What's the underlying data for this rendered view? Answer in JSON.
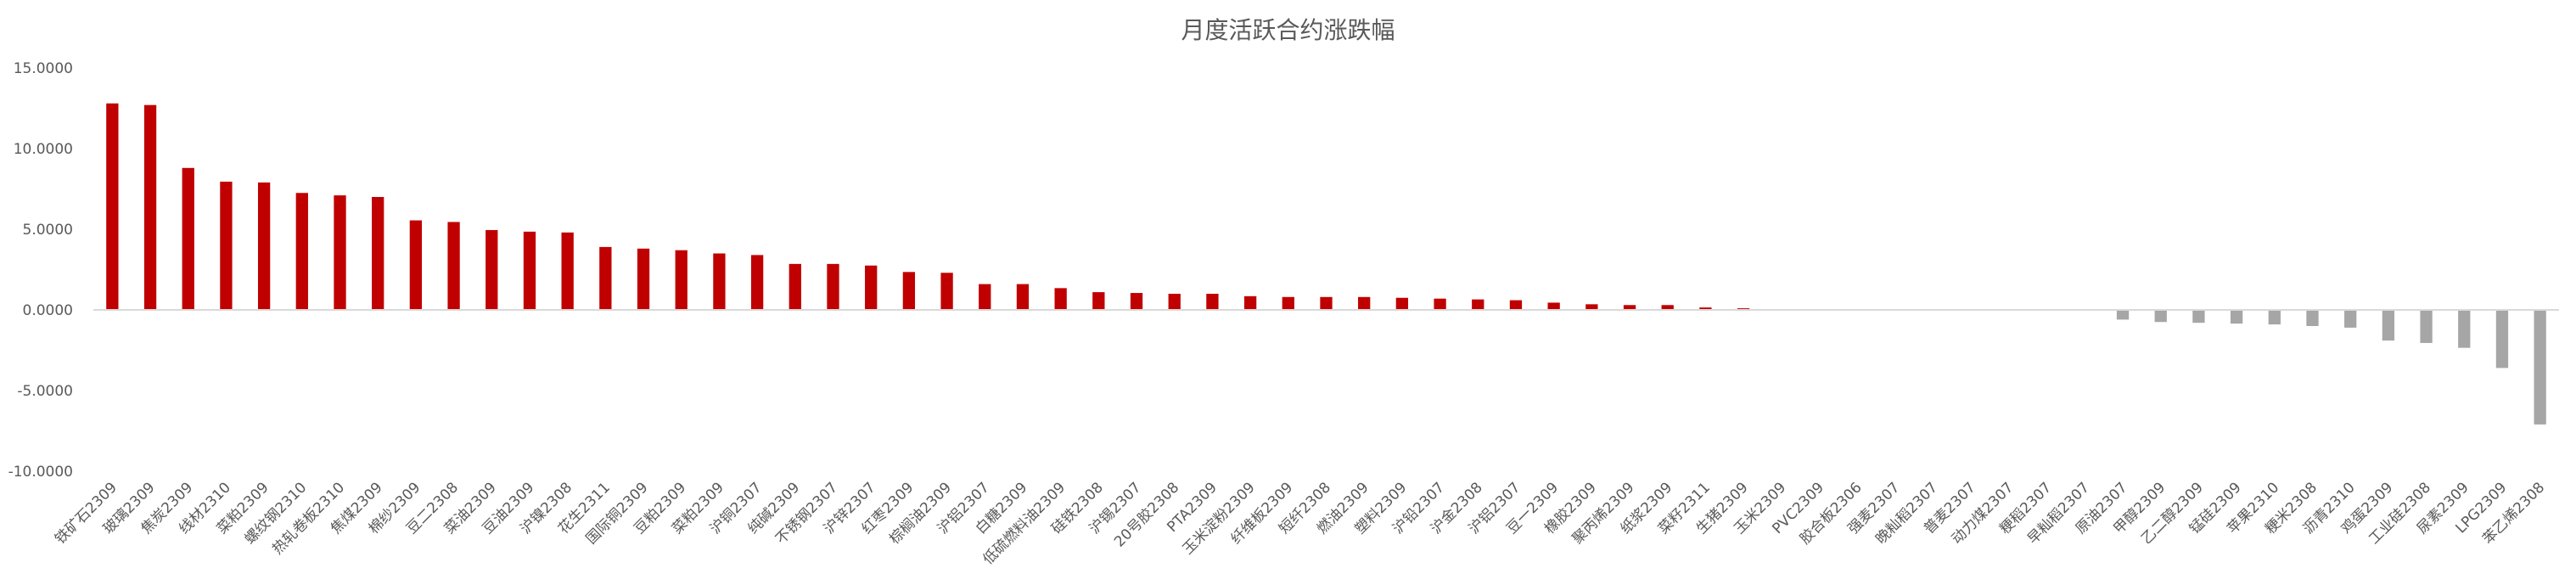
{
  "chart_data": {
    "type": "bar",
    "title": "月度活跃合约涨跌幅",
    "xlabel": "",
    "ylabel": "",
    "ylim": [
      -10,
      15
    ],
    "yticks": [
      "15.0000",
      "10.0000",
      "5.0000",
      "0.0000",
      "-5.0000",
      "-10.0000"
    ],
    "grid": false,
    "legend": "none",
    "colors": {
      "positive": "#c00000",
      "negative": "#a6a6a6",
      "axis": "#d9d9d9"
    },
    "categories": [
      "铁矿石2309",
      "玻璃2309",
      "焦炭2309",
      "线材2310",
      "菜粕2309",
      "螺纹钢2310",
      "热轧卷板2310",
      "焦煤2309",
      "棉纱2309",
      "豆二2308",
      "菜油2309",
      "豆油2309",
      "沪镍2308",
      "花生2311",
      "国际铜2309",
      "豆粕2309",
      "菜粕2309",
      "沪铜2307",
      "纯碱2309",
      "不锈钢2307",
      "沪锌2307",
      "红枣2309",
      "棕榈油2309",
      "沪铝2307",
      "白糖2309",
      "低硫燃料油2309",
      "硅铁2308",
      "沪锡2307",
      "20号胶2308",
      "PTA2309",
      "玉米淀粉2309",
      "纤维板2309",
      "短纤2308",
      "燃油2309",
      "塑料2309",
      "沪铅2307",
      "沪金2308",
      "沪铝2307",
      "豆一2309",
      "橡胶2309",
      "聚丙烯2309",
      "纸浆2309",
      "菜籽2311",
      "生猪2309",
      "玉米2309",
      "PVC2309",
      "胶合板2306",
      "强麦2307",
      "晚籼稻2307",
      "普麦2307",
      "动力煤2307",
      "粳稻2307",
      "早籼稻2307",
      "原油2307",
      "甲醇2309",
      "乙二醇2309",
      "锰硅2309",
      "苹果2310",
      "粳米2308",
      "沥青2310",
      "鸡蛋2309",
      "工业硅2308",
      "尿素2309",
      "LPG2309",
      "苯乙烯2308"
    ],
    "values": [
      12.8,
      12.7,
      8.8,
      7.95,
      7.9,
      7.25,
      7.1,
      7.0,
      5.55,
      5.45,
      4.95,
      4.85,
      4.8,
      3.9,
      3.8,
      3.7,
      3.5,
      3.4,
      2.85,
      2.85,
      2.75,
      2.35,
      2.3,
      1.6,
      1.6,
      1.35,
      1.1,
      1.05,
      1.0,
      1.0,
      0.85,
      0.8,
      0.8,
      0.8,
      0.75,
      0.7,
      0.65,
      0.6,
      0.45,
      0.35,
      0.3,
      0.3,
      0.15,
      0.1,
      0.05,
      0.0,
      0.0,
      0.0,
      0.0,
      0.0,
      0.0,
      0.0,
      0.0,
      -0.6,
      -0.75,
      -0.8,
      -0.85,
      -0.9,
      -1.0,
      -1.1,
      -1.9,
      -2.05,
      -2.35,
      -3.6,
      -7.1
    ]
  }
}
